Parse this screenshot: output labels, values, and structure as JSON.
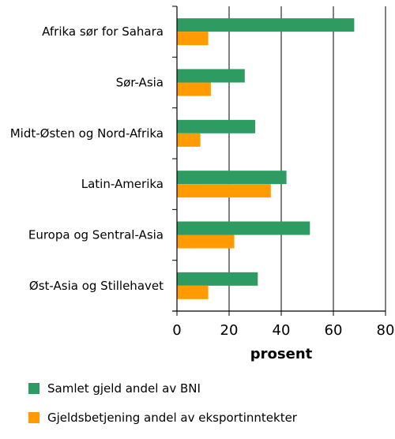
{
  "chart_data": {
    "type": "bar",
    "orientation": "horizontal",
    "categories": [
      "Afrika sør for Sahara",
      "Sør-Asia",
      "Midt-Østen og Nord-Afrika",
      "Latin-Amerika",
      "Europa og Sentral-Asia",
      "Øst-Asia og Stillehavet"
    ],
    "series": [
      {
        "name": "Samlet gjeld andel av BNI",
        "color": "#2e9b63",
        "values": [
          68,
          26,
          30,
          42,
          51,
          31
        ]
      },
      {
        "name": "Gjeldsbetjening andel av eksportinntekter",
        "color": "#ff9b00",
        "values": [
          12,
          13,
          9,
          36,
          22,
          12
        ]
      }
    ],
    "xlabel": "prosent",
    "xlim": [
      0,
      80
    ],
    "xticks": [
      0,
      20,
      40,
      60,
      80
    ],
    "grid": true,
    "legend_position": "bottom"
  }
}
